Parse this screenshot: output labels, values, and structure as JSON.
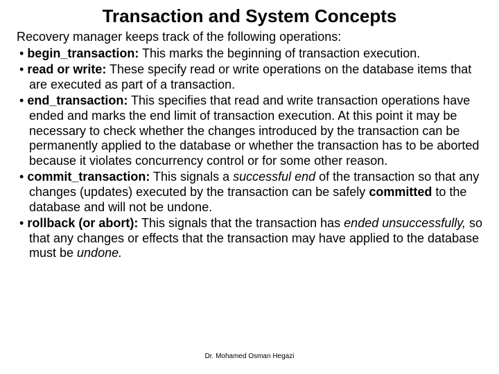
{
  "title": "Transaction and System Concepts",
  "intro": "Recovery manager keeps track of the following operations:",
  "bullets": {
    "b1_term": "begin_transaction:",
    "b1_rest": " This marks the beginning of transaction execution.",
    "b2_term": "read or write:",
    "b2_rest": " These specify read or write operations on the database items that are executed as part of a transaction.",
    "b3_term": "end_transaction:",
    "b3_rest": " This specifies that read and write transaction operations have ended and marks the end limit of transaction execution. At this point it may be necessary to check whether the changes introduced by the transaction can be permanently applied to the database or whether the transaction has to be aborted because it violates concurrency control or for some other reason.",
    "b4_term": "commit_transaction:",
    "b4_t1": " This signals a ",
    "b4_it1": "successful end",
    "b4_t2": " of the transaction so that any changes (updates) executed by the transaction can be safely ",
    "b4_bold1": "committed",
    "b4_t3": " to the database and will not be undone.",
    "b5_term": "rollback (or abort):",
    "b5_t1": " This signals that the transaction has ",
    "b5_it1": "ended unsuccessfully,",
    "b5_t2": " so that any changes or effects that the transaction may have applied to the database must be ",
    "b5_it2": "undone.",
    "b5_t3": ""
  },
  "footer": "Dr. Mohamed Osman Hegazi"
}
